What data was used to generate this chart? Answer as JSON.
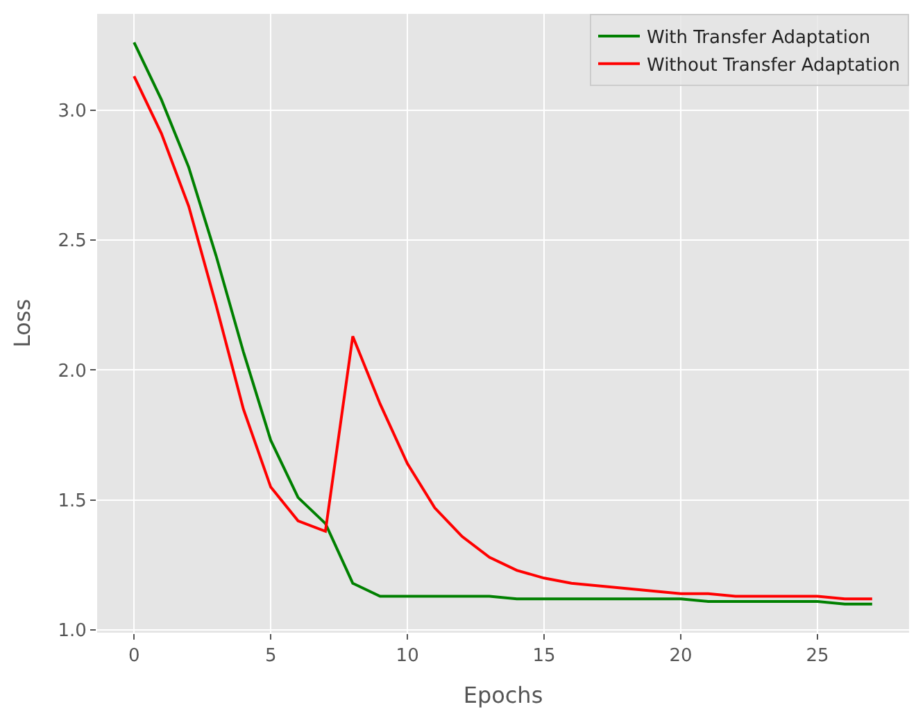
{
  "chart_data": {
    "type": "line",
    "xlabel": "Epochs",
    "ylabel": "Loss",
    "x": [
      0,
      1,
      2,
      3,
      4,
      5,
      6,
      7,
      8,
      9,
      10,
      11,
      12,
      13,
      14,
      15,
      16,
      17,
      18,
      19,
      20,
      21,
      22,
      23,
      24,
      25,
      26,
      27
    ],
    "series": [
      {
        "name": "With Transfer Adaptation",
        "color": "#008000",
        "values": [
          3.26,
          3.04,
          2.78,
          2.44,
          2.07,
          1.73,
          1.51,
          1.41,
          1.18,
          1.13,
          1.13,
          1.13,
          1.13,
          1.13,
          1.12,
          1.12,
          1.12,
          1.12,
          1.12,
          1.12,
          1.12,
          1.11,
          1.11,
          1.11,
          1.11,
          1.11,
          1.1,
          1.1
        ]
      },
      {
        "name": "Without Transfer Adaptation",
        "color": "#ff0000",
        "values": [
          3.13,
          2.91,
          2.63,
          2.25,
          1.85,
          1.55,
          1.42,
          1.38,
          2.13,
          1.87,
          1.64,
          1.47,
          1.36,
          1.28,
          1.23,
          1.2,
          1.18,
          1.17,
          1.16,
          1.15,
          1.14,
          1.14,
          1.13,
          1.13,
          1.13,
          1.13,
          1.12,
          1.12
        ]
      }
    ],
    "xlim": [
      -1.35,
      28.35
    ],
    "ylim": [
      0.99,
      3.37
    ],
    "xticks": [
      0,
      5,
      10,
      15,
      20,
      25
    ],
    "yticks": [
      {
        "value": 1.0,
        "label": "1.0"
      },
      {
        "value": 1.5,
        "label": "1.5"
      },
      {
        "value": 2.0,
        "label": "2.0"
      },
      {
        "value": 2.5,
        "label": "2.5"
      },
      {
        "value": 3.0,
        "label": "3.0"
      }
    ],
    "grid": true,
    "legend": "top right",
    "marker": "none",
    "line_style": "solid"
  }
}
